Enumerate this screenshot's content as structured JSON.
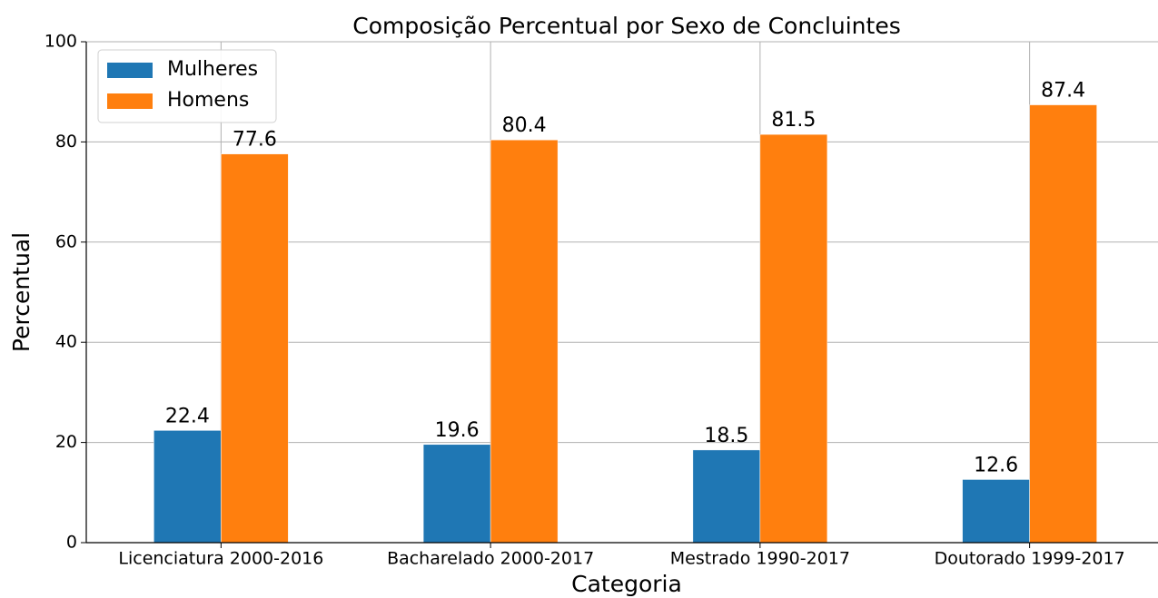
{
  "chart_data": {
    "type": "bar",
    "title": "Composição Percentual por Sexo de Concluintes",
    "xlabel": "Categoria",
    "ylabel": "Percentual",
    "categories": [
      "Licenciatura 2000-2016",
      "Bacharelado 2000-2017",
      "Mestrado 1990-2017",
      "Doutorado 1999-2017"
    ],
    "series": [
      {
        "name": "Mulheres",
        "color": "#1f77b4",
        "values": [
          22.4,
          19.6,
          18.5,
          12.6
        ]
      },
      {
        "name": "Homens",
        "color": "#ff7f0e",
        "values": [
          77.6,
          80.4,
          81.5,
          87.4
        ]
      }
    ],
    "ylim": [
      0,
      100
    ],
    "yticks": [
      0,
      20,
      40,
      60,
      80,
      100
    ],
    "grid": true,
    "legend": "upper left"
  }
}
